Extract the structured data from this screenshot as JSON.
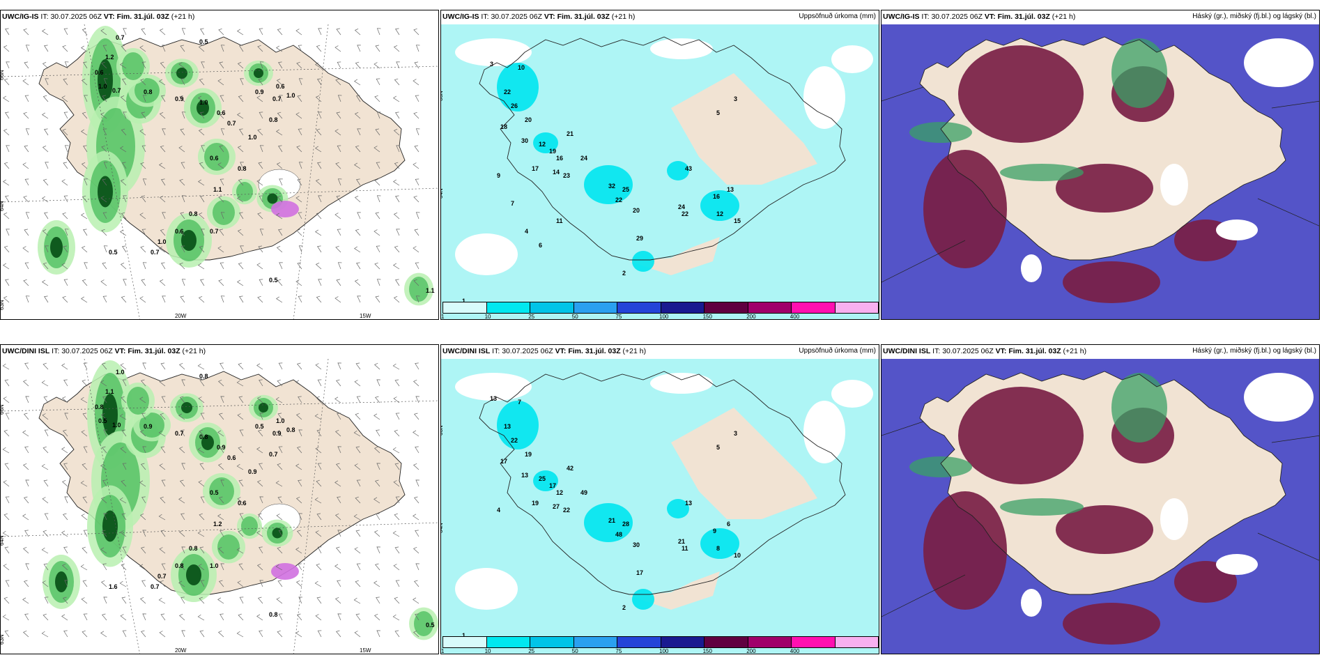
{
  "colors": {
    "land": "#f1e3d3",
    "precip_light": "#aef5f5",
    "precip_mid": "#00e5f0",
    "cloud_high": "#7a1f45",
    "cloud_mid": "#3aa066",
    "cloud_low": "#5454c8",
    "green_light": "#b8f0b0",
    "green_mid": "#4fbf60",
    "green_dark": "#0f5a1e",
    "purple": "#d070e0"
  },
  "panels": [
    {
      "model": "UWC/IG-IS",
      "it_label": "IT:",
      "it": "30.07.2025 06Z",
      "vt_label": "VT:",
      "vt": "Fim. 31.júl. 03Z",
      "lead": "(+21 h)",
      "right": ""
    },
    {
      "model": "UWC/IG-IS",
      "it_label": "IT:",
      "it": "30.07.2025 06Z",
      "vt_label": "VT:",
      "vt": "Fim. 31.júl. 03Z",
      "lead": "(+21 h)",
      "right": "Uppsöfnuð úrkoma (mm)"
    },
    {
      "model": "UWC/IG-IS",
      "it_label": "IT:",
      "it": "30.07.2025 06Z",
      "vt_label": "VT:",
      "vt": "Fim. 31.júl. 03Z",
      "lead": "(+21 h)",
      "right": "Háský (gr.), miðský (fj.bl.) og lágský (bl.)"
    },
    {
      "model": "UWC/DINI ISL",
      "it_label": "IT:",
      "it": "30.07.2025 06Z",
      "vt_label": "VT:",
      "vt": "Fim. 31.júl. 03Z",
      "lead": "(+21 h)",
      "right": ""
    },
    {
      "model": "UWC/DINI ISL",
      "it_label": "IT:",
      "it": "30.07.2025 06Z",
      "vt_label": "VT:",
      "vt": "Fim. 31.júl. 03Z",
      "lead": "(+21 h)",
      "right": "Uppsöfnuð úrkoma (mm)"
    },
    {
      "model": "UWC/DINI ISL",
      "it_label": "IT:",
      "it": "30.07.2025 06Z",
      "vt_label": "VT:",
      "vt": "Fim. 31.júl. 03Z",
      "lead": "(+21 h)",
      "right": "Háský (gr.), miðský (fj.bl.) og lágský (bl.)"
    }
  ],
  "axis_ticks": {
    "lat_66": "66N",
    "lat_64": "64N",
    "lat_63": "63N",
    "lon_20": "20W",
    "lon_15": "15W"
  },
  "precip_colorbar": {
    "ticks": [
      "1",
      "10",
      "25",
      "50",
      "75",
      "100",
      "150",
      "200",
      "400"
    ],
    "colors": [
      "#d8fbfb",
      "#00e8f0",
      "#00c4e8",
      "#2aa0f0",
      "#2444d8",
      "#1a1a90",
      "#600040",
      "#a0006a",
      "#ff10b0",
      "#f8b0f0"
    ]
  },
  "wind_labels_top": [
    "0.7",
    "0.5",
    "1.2",
    "0.6",
    "1.0",
    "0.7",
    "0.8",
    "0.9",
    "1.0",
    "0.6",
    "0.7",
    "0.9",
    "0.6",
    "1.0",
    "0.8",
    "1.0",
    "0.6",
    "0.8",
    "1.1",
    "0.8",
    "0.7",
    "0.6",
    "1.0",
    "0.7",
    "0.5",
    "0.5",
    "1.1",
    "0.7"
  ],
  "wind_labels_bottom": [
    "1.0",
    "0.8",
    "1.1",
    "0.8",
    "0.5",
    "1.0",
    "0.9",
    "0.7",
    "0.8",
    "0.9",
    "0.6",
    "0.5",
    "1.0",
    "0.8",
    "0.7",
    "0.9",
    "0.5",
    "0.6",
    "1.2",
    "0.8",
    "1.0",
    "0.8",
    "0.7",
    "0.9",
    "0.8",
    "1.6",
    "0.5",
    "0.7"
  ],
  "precip_labels_top": [
    "10",
    "3",
    "22",
    "26",
    "20",
    "18",
    "30",
    "12",
    "19",
    "16",
    "17",
    "14",
    "23",
    "21",
    "24",
    "32",
    "25",
    "20",
    "22",
    "29",
    "43",
    "24",
    "22",
    "16",
    "12",
    "15",
    "13",
    "5",
    "3",
    "2",
    "1",
    "9",
    "7",
    "4",
    "6",
    "11"
  ],
  "precip_labels_bottom": [
    "7",
    "13",
    "13",
    "22",
    "19",
    "17",
    "13",
    "25",
    "17",
    "12",
    "19",
    "27",
    "22",
    "42",
    "49",
    "21",
    "28",
    "30",
    "48",
    "17",
    "13",
    "21",
    "11",
    "9",
    "8",
    "10",
    "6",
    "5",
    "3",
    "2",
    "1",
    "4"
  ]
}
